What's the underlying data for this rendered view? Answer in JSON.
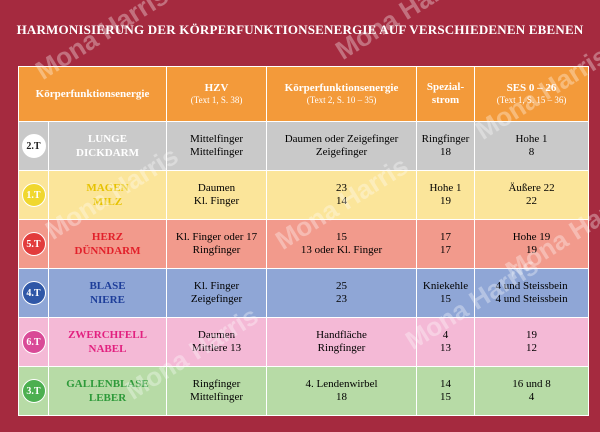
{
  "title": "HARMONISIERUNG DER KÖRPERFUNKTIONSENERGIE AUF VERSCHIEDENEN EBENEN",
  "headers": [
    {
      "main": "Körperfunktionsenergie",
      "sub": ""
    },
    {
      "main": "HZV",
      "sub": "(Text 1, S. 38)"
    },
    {
      "main": "Körperfunktionsenergie",
      "sub": "(Text 2, S. 10 – 35)"
    },
    {
      "main": "Spezial-",
      "sub": "strom"
    },
    {
      "main": "SES 0 – 26",
      "sub": "(Text 1, S. 15 – 36)"
    }
  ],
  "rows": [
    {
      "badge": "2.T",
      "badge_color": "#ffffff",
      "badge_text": "#222222",
      "row_bg": "#c9c9c9",
      "organ_color": "#ffffff",
      "organ": [
        "LUNGE",
        "DICKDARM"
      ],
      "hzv": [
        "Mittelfinger",
        "Mittelfinger"
      ],
      "kfe": [
        "Daumen oder Zeigefinger",
        "Zeigefinger"
      ],
      "strom": [
        "Ringfinger",
        "18"
      ],
      "ses": [
        "Hohe 1",
        "8"
      ]
    },
    {
      "badge": "1.T",
      "badge_color": "#f0d72e",
      "badge_text": "#ffffff",
      "row_bg": "#fbe59a",
      "organ_color": "#e6c200",
      "organ": [
        "MAGEN",
        "MILZ"
      ],
      "hzv": [
        "Daumen",
        "Kl. Finger"
      ],
      "kfe": [
        "23",
        "14"
      ],
      "strom": [
        "Hohe 1",
        "19"
      ],
      "ses": [
        "Äußere 22",
        "22"
      ]
    },
    {
      "badge": "5.T",
      "badge_color": "#e23c3c",
      "badge_text": "#ffffff",
      "row_bg": "#f29a8c",
      "organ_color": "#e2202a",
      "organ": [
        "HERZ",
        "DÜNNDARM"
      ],
      "hzv": [
        "Kl. Finger oder 17",
        "Ringfinger"
      ],
      "kfe": [
        "15",
        "13 oder Kl. Finger"
      ],
      "strom": [
        "17",
        "17"
      ],
      "ses": [
        "Hohe 19",
        "19"
      ]
    },
    {
      "badge": "4.T",
      "badge_color": "#2f57a7",
      "badge_text": "#ffffff",
      "row_bg": "#8fa6d6",
      "organ_color": "#1e3e9a",
      "organ": [
        "BLASE",
        "NIERE"
      ],
      "hzv": [
        "Kl. Finger",
        "Zeigefinger"
      ],
      "kfe": [
        "25",
        "23"
      ],
      "strom": [
        "Kniekehle",
        "15"
      ],
      "ses": [
        "4 und Steissbein",
        "4 und Steissbein"
      ]
    },
    {
      "badge": "6.T",
      "badge_color": "#d94a97",
      "badge_text": "#ffffff",
      "row_bg": "#f4b9d6",
      "organ_color": "#e2207f",
      "organ": [
        "ZWERCHFELL",
        "NABEL"
      ],
      "hzv": [
        "Daumen",
        "Mittlere 13"
      ],
      "kfe": [
        "Handfläche",
        "Ringfinger"
      ],
      "strom": [
        "4",
        "13"
      ],
      "ses": [
        "19",
        "12"
      ]
    },
    {
      "badge": "3.T",
      "badge_color": "#4caf50",
      "badge_text": "#ffffff",
      "row_bg": "#b7dba6",
      "organ_color": "#2e9a3a",
      "organ": [
        "GALLENBLASE",
        "LEBER"
      ],
      "hzv": [
        "Ringfinger",
        "Mittelfinger"
      ],
      "kfe": [
        "4. Lendenwirbel",
        "18"
      ],
      "strom": [
        "14",
        "15"
      ],
      "ses": [
        "16 und 8",
        "4"
      ]
    }
  ],
  "watermark": "Mona Harris"
}
